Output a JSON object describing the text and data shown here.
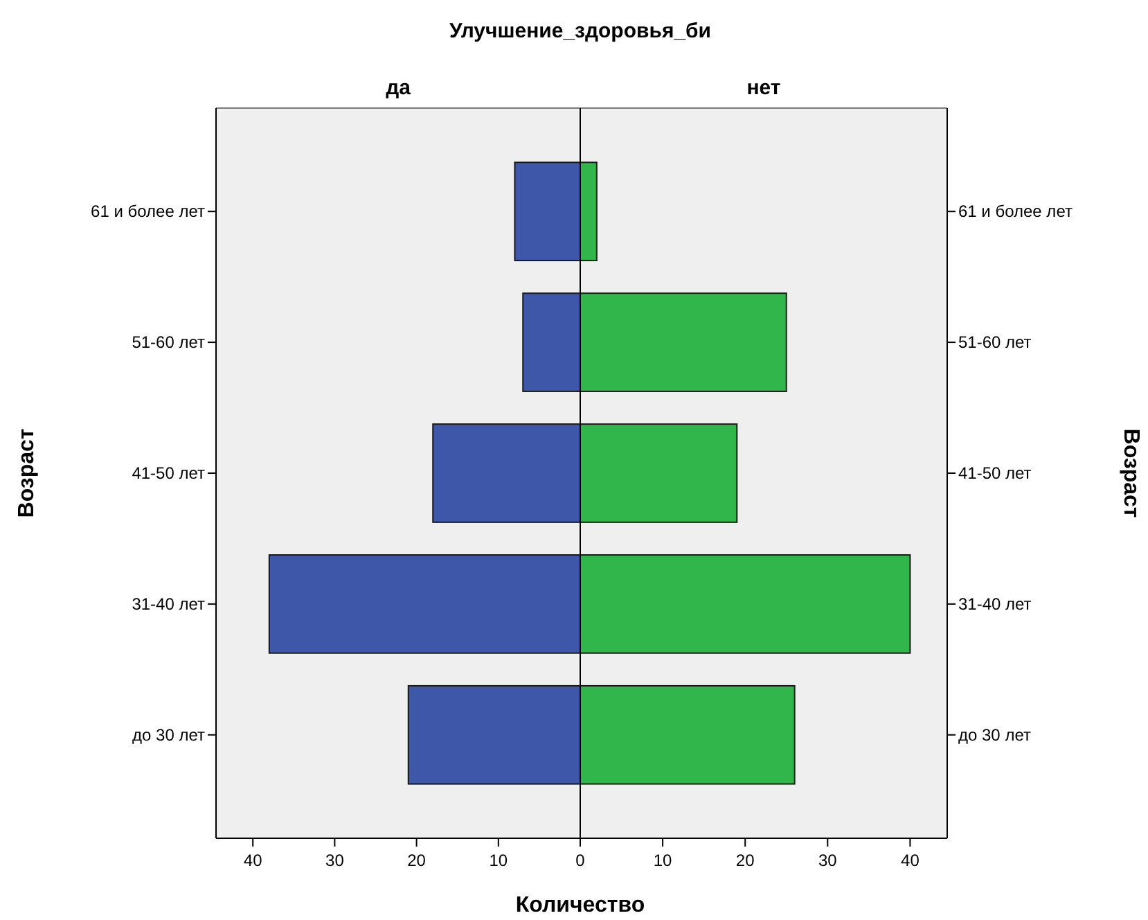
{
  "chart_data": [
    {
      "type": "bar",
      "orientation": "horizontal",
      "title": "да",
      "annotations": [
        "Улучшение_здоровья_би"
      ],
      "xlabel": "Количество",
      "ylabel": "Возраст",
      "categories": [
        "61 и более лет",
        "51-60 лет",
        "41-50 лет",
        "31-40 лет",
        "до 30 лет"
      ],
      "values": [
        8,
        7,
        18,
        38,
        21
      ],
      "color": "#3f57a8",
      "xlim": [
        44.5,
        0
      ],
      "xticks": [
        40,
        30,
        20,
        10,
        0
      ],
      "grid": false
    },
    {
      "type": "bar",
      "orientation": "horizontal",
      "title": "нет",
      "ylabel": "Возраст",
      "categories": [
        "61 и более лет",
        "51-60 лет",
        "41-50 лет",
        "31-40 лет",
        "до 30 лет"
      ],
      "values": [
        2,
        25,
        19,
        40,
        26
      ],
      "color": "#30b64a",
      "xlim": [
        0,
        44.5
      ],
      "xticks": [
        {
          "value": 0,
          "label": null
        },
        10,
        20,
        30,
        40
      ],
      "grid": false
    }
  ]
}
